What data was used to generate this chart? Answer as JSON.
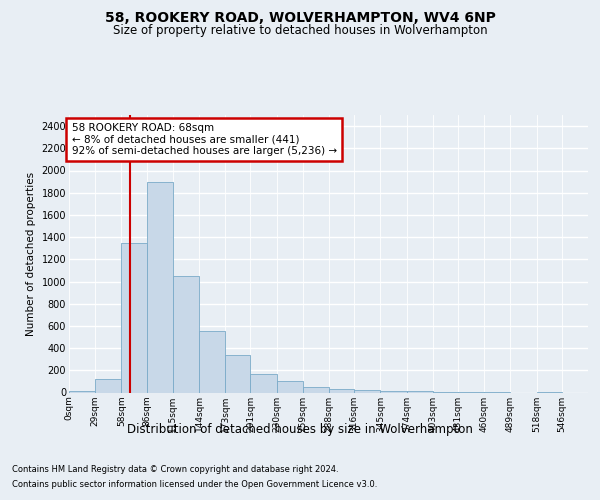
{
  "title1": "58, ROOKERY ROAD, WOLVERHAMPTON, WV4 6NP",
  "title2": "Size of property relative to detached houses in Wolverhampton",
  "xlabel": "Distribution of detached houses by size in Wolverhampton",
  "ylabel": "Number of detached properties",
  "footer1": "Contains HM Land Registry data © Crown copyright and database right 2024.",
  "footer2": "Contains public sector information licensed under the Open Government Licence v3.0.",
  "annotation_line1": "58 ROOKERY ROAD: 68sqm",
  "annotation_line2": "← 8% of detached houses are smaller (441)",
  "annotation_line3": "92% of semi-detached houses are larger (5,236) →",
  "bar_color": "#c8d8e8",
  "bar_edge_color": "#7aaac8",
  "redline_color": "#cc0000",
  "annotation_box_color": "#cc0000",
  "bins": [
    0,
    29,
    58,
    86,
    115,
    144,
    173,
    201,
    230,
    259,
    288,
    316,
    345,
    374,
    403,
    431,
    460,
    489,
    518,
    546,
    575
  ],
  "counts": [
    10,
    120,
    1350,
    1900,
    1050,
    550,
    335,
    165,
    100,
    50,
    30,
    20,
    15,
    10,
    5,
    8,
    2,
    0,
    2,
    0
  ],
  "property_size": 68,
  "ylim_max": 2500,
  "yticks": [
    0,
    200,
    400,
    600,
    800,
    1000,
    1200,
    1400,
    1600,
    1800,
    2000,
    2200,
    2400
  ],
  "bg_color": "#e8eef4",
  "title1_fontsize": 10,
  "title2_fontsize": 8.5,
  "ylabel_fontsize": 7.5,
  "xlabel_fontsize": 8.5,
  "tick_fontsize": 7,
  "footer_fontsize": 6,
  "ann_fontsize": 7.5
}
